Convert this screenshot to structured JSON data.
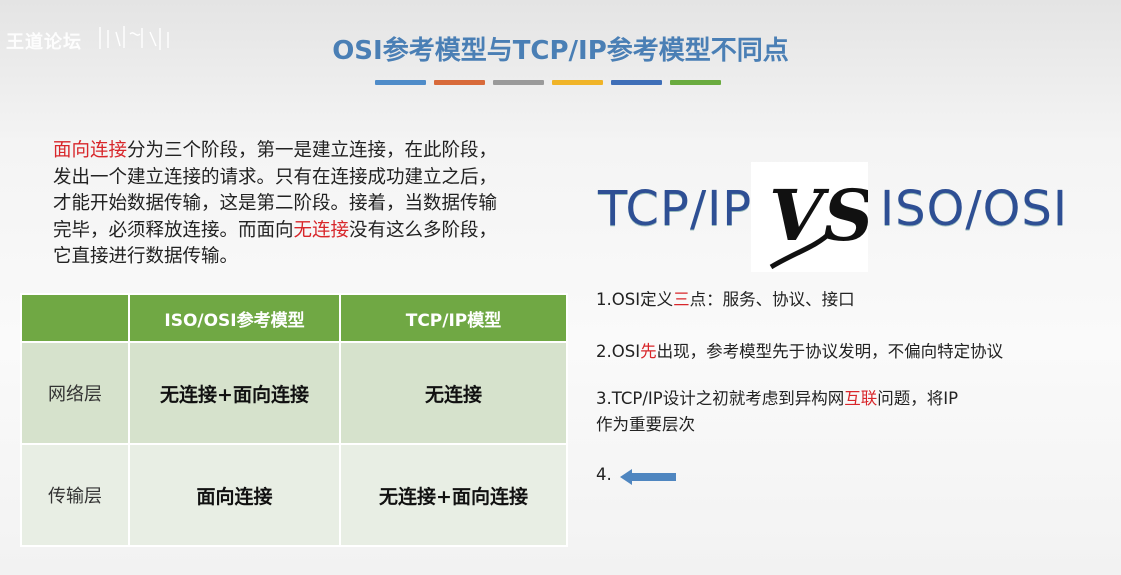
{
  "header": {
    "logo": "王道论坛",
    "title": "OSI参考模型与TCP/IP参考模型不同点",
    "bar_colors": [
      "#4f8cc9",
      "#d86a3a",
      "#9a9a9a",
      "#f0b428",
      "#3f6fb8",
      "#6aab3f"
    ]
  },
  "paragraph": [
    {
      "text": "面向连接",
      "red": true
    },
    {
      "text": "分为三个阶段，第一是建立连接，在此阶段，发出一个建立连接的请求。只有在连接成功建立之后，才能开始数据传输，这是第二阶段。接着，当数据传输完毕，必须释放连接。而面向",
      "red": false
    },
    {
      "text": "无连接",
      "red": true
    },
    {
      "text": "没有这么多阶段，它直接进行数据传输。",
      "red": false
    }
  ],
  "table": {
    "headers": [
      "",
      "ISO/OSI参考模型",
      "TCP/IP模型"
    ],
    "rows": [
      [
        "网络层",
        "无连接+面向连接",
        "无连接"
      ],
      [
        "传输层",
        "面向连接",
        "无连接+面向连接"
      ]
    ]
  },
  "compare": {
    "left": "TCP/IP",
    "vs": "VS",
    "right": "ISO/OSI"
  },
  "points": {
    "p1a": "1.OSI定义",
    "p1r": "三",
    "p1b": "点：服务、协议、接口",
    "p2a": "2.OSI",
    "p2r": "先",
    "p2b": "出现，参考模型先于协议发明，不偏向特定协议",
    "p3a": "3.TCP/IP设计之初就考虑到异构网",
    "p3r": "互联",
    "p3b": "问题，将IP",
    "p3c": "作为重要层次",
    "p4": "4."
  },
  "colors": {
    "accent_red": "#d8262a",
    "table_header": "#70a844",
    "title": "#4a7fb5"
  }
}
